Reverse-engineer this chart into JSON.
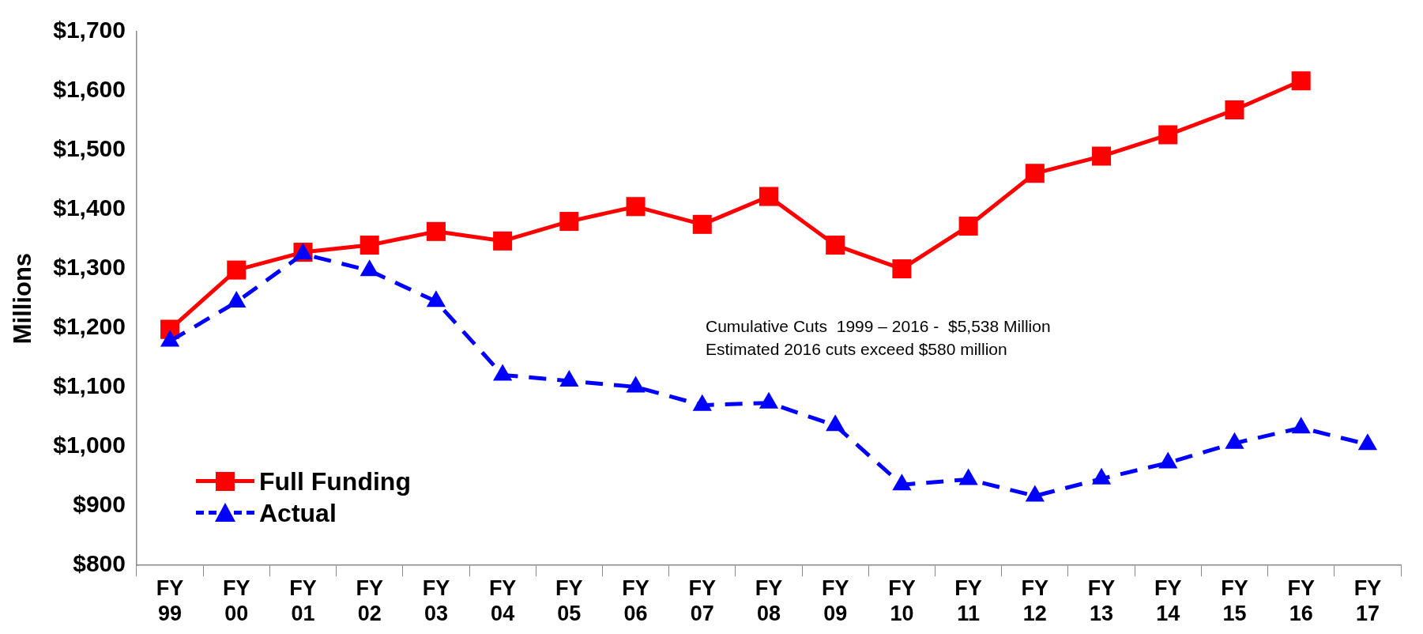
{
  "chart_data": {
    "type": "line",
    "ylabel": "Millions",
    "categories": [
      "FY 99",
      "FY 00",
      "FY 01",
      "FY 02",
      "FY 03",
      "FY 04",
      "FY 05",
      "FY 06",
      "FY 07",
      "FY 08",
      "FY 09",
      "FY 10",
      "FY 11",
      "FY 12",
      "FY 13",
      "FY 14",
      "FY 15",
      "FY 16",
      "FY 17"
    ],
    "series": [
      {
        "name": "Full Funding",
        "color": "#ff0000",
        "marker": "square",
        "line_style": "solid",
        "values": [
          1198,
          1298,
          1328,
          1340,
          1363,
          1347,
          1380,
          1405,
          1375,
          1422,
          1340,
          1300,
          1372,
          1461,
          1490,
          1526,
          1568,
          1617,
          null
        ]
      },
      {
        "name": "Actual",
        "color": "#0000ff",
        "marker": "triangle",
        "line_style": "dashed",
        "values": [
          1178,
          1244,
          1325,
          1297,
          1245,
          1121,
          1111,
          1101,
          1070,
          1074,
          1036,
          936,
          945,
          917,
          946,
          973,
          1006,
          1032,
          1004
        ]
      }
    ],
    "ylim": [
      800,
      1700
    ],
    "yticks": [
      {
        "value": 800,
        "label": "$800"
      },
      {
        "value": 900,
        "label": "$900"
      },
      {
        "value": 1000,
        "label": "$1,000"
      },
      {
        "value": 1100,
        "label": "$1,100"
      },
      {
        "value": 1200,
        "label": "$1,200"
      },
      {
        "value": 1300,
        "label": "$1,300"
      },
      {
        "value": 1400,
        "label": "$1,400"
      },
      {
        "value": 1500,
        "label": "$1,500"
      },
      {
        "value": 1600,
        "label": "$1,600"
      },
      {
        "value": 1700,
        "label": "$1,700"
      }
    ],
    "grid": false,
    "legend": "bottom left",
    "annotations": [
      "Cumulative Cuts  1999 – 2016 -  $5,538 Million",
      "Estimated 2016 cuts exceed $580 million"
    ]
  }
}
